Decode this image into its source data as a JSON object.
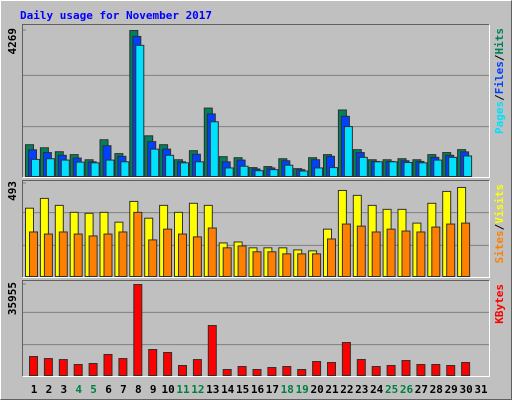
{
  "title": "Daily usage for November 2017",
  "chart_data": [
    {
      "type": "bar",
      "ylim": [
        0,
        4269
      ],
      "yticks": [
        4269
      ],
      "grid_divisions": 3,
      "legend_separator": "/",
      "series": [
        {
          "name": "Hits",
          "color": "#00805c",
          "values": [
            930,
            840,
            725,
            640,
            490,
            1075,
            670,
            4269,
            1190,
            930,
            490,
            755,
            2000,
            580,
            550,
            260,
            290,
            520,
            230,
            550,
            640,
            1945,
            785,
            490,
            490,
            520,
            490,
            640,
            700,
            785,
            0
          ]
        },
        {
          "name": "Files",
          "color": "#0040ff",
          "values": [
            780,
            700,
            620,
            540,
            430,
            900,
            590,
            4095,
            1020,
            800,
            430,
            650,
            1830,
            430,
            480,
            220,
            250,
            460,
            200,
            490,
            590,
            1760,
            700,
            440,
            440,
            460,
            440,
            560,
            620,
            720,
            0
          ]
        },
        {
          "name": "Pages",
          "color": "#00e0ff",
          "values": [
            500,
            520,
            480,
            420,
            400,
            480,
            430,
            3835,
            800,
            620,
            400,
            430,
            1600,
            250,
            300,
            170,
            200,
            330,
            160,
            250,
            260,
            1460,
            560,
            430,
            430,
            410,
            400,
            480,
            560,
            600,
            0
          ]
        }
      ]
    },
    {
      "type": "bar",
      "ylim": [
        0,
        493
      ],
      "yticks": [
        493
      ],
      "grid_divisions": 3,
      "legend_separator": "/",
      "series": [
        {
          "name": "Visits",
          "color": "#ffff00",
          "values": [
            362,
            414,
            377,
            340,
            335,
            340,
            288,
            398,
            309,
            377,
            340,
            388,
            377,
            178,
            183,
            152,
            152,
            152,
            141,
            136,
            251,
            456,
            430,
            377,
            356,
            356,
            283,
            388,
            451,
            472,
            0
          ]
        },
        {
          "name": "Sites",
          "color": "#ff8000",
          "values": [
            236,
            225,
            236,
            225,
            215,
            225,
            236,
            340,
            194,
            251,
            225,
            210,
            257,
            152,
            162,
            131,
            131,
            120,
            120,
            120,
            199,
            278,
            267,
            236,
            251,
            241,
            236,
            262,
            278,
            283,
            0
          ]
        }
      ]
    },
    {
      "type": "bar",
      "ylim": [
        0,
        35955
      ],
      "yticks": [
        35955
      ],
      "grid_divisions": 3,
      "categories": [
        "1",
        "2",
        "3",
        "4",
        "5",
        "6",
        "7",
        "8",
        "9",
        "10",
        "11",
        "12",
        "13",
        "14",
        "15",
        "16",
        "17",
        "18",
        "19",
        "20",
        "21",
        "22",
        "23",
        "24",
        "25",
        "26",
        "27",
        "28",
        "29",
        "30",
        "31"
      ],
      "highlight_categories": [
        "4",
        "5",
        "11",
        "12",
        "18",
        "19",
        "25",
        "26"
      ],
      "highlight_color": "#008040",
      "series": [
        {
          "name": "KBytes",
          "color": "#ff0000",
          "values": [
            7500,
            6700,
            6300,
            4350,
            4740,
            8300,
            6700,
            35955,
            10270,
            9090,
            3950,
            6300,
            19750,
            2370,
            3555,
            2370,
            3160,
            3555,
            2370,
            5530,
            5140,
            13040,
            6320,
            3555,
            3950,
            5925,
            4350,
            4350,
            3950,
            5140,
            0
          ]
        }
      ]
    }
  ]
}
